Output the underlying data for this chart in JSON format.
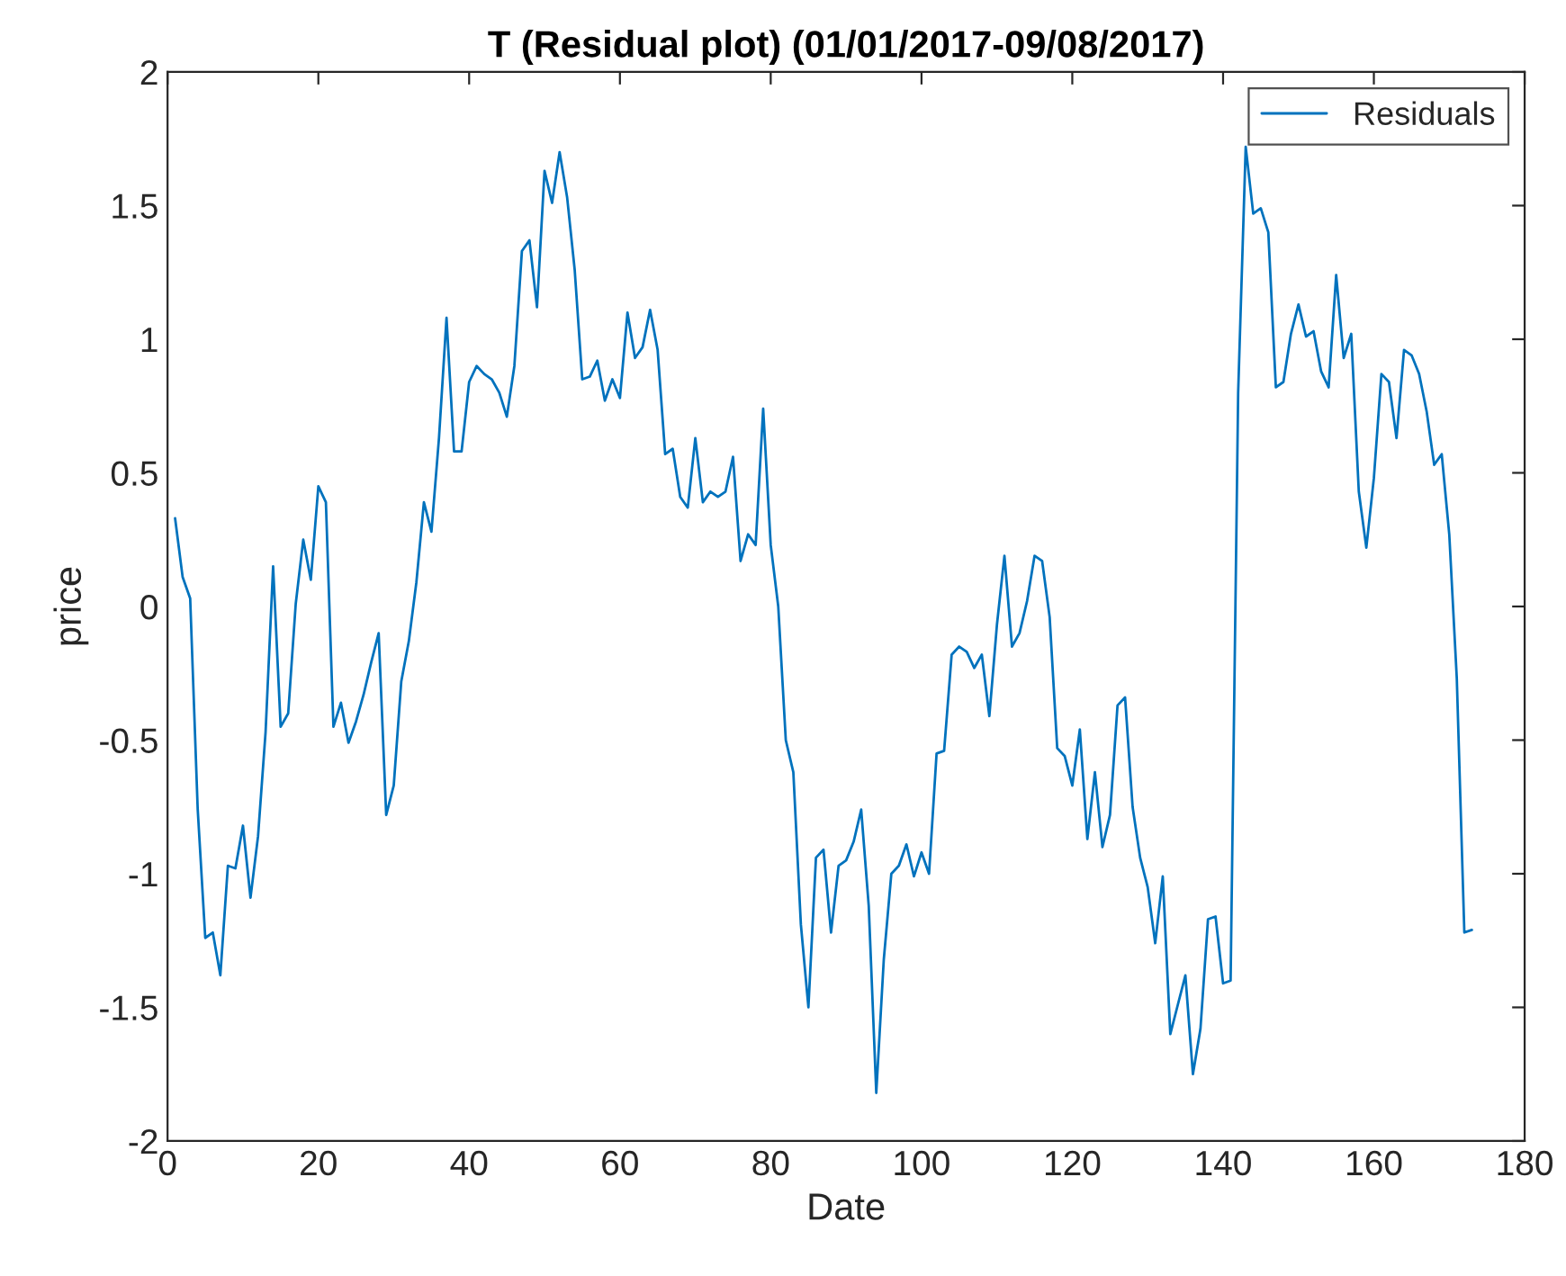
{
  "chart_data": {
    "type": "line",
    "title": "T (Residual plot) (01/01/2017-09/08/2017)",
    "xlabel": "Date",
    "ylabel": "price",
    "xlim": [
      0,
      180
    ],
    "xticks": [
      0,
      20,
      40,
      60,
      80,
      100,
      120,
      140,
      160,
      180
    ],
    "ylim": [
      -2,
      2
    ],
    "yticks": [
      -2,
      -1.5,
      -1,
      -0.5,
      0,
      0.5,
      1,
      1.5,
      2
    ],
    "grid": false,
    "legend": "top right",
    "x": [
      1,
      2,
      3,
      4,
      5,
      6,
      7,
      8,
      9,
      10,
      11,
      12,
      13,
      14,
      15,
      16,
      17,
      18,
      19,
      20,
      21,
      22,
      23,
      24,
      25,
      26,
      27,
      28,
      29,
      30,
      31,
      32,
      33,
      34,
      35,
      36,
      37,
      38,
      39,
      40,
      41,
      42,
      43,
      44,
      45,
      46,
      47,
      48,
      49,
      50,
      51,
      52,
      53,
      54,
      55,
      56,
      57,
      58,
      59,
      60,
      61,
      62,
      63,
      64,
      65,
      66,
      67,
      68,
      69,
      70,
      71,
      72,
      73,
      74,
      75,
      76,
      77,
      78,
      79,
      80,
      81,
      82,
      83,
      84,
      85,
      86,
      87,
      88,
      89,
      90,
      91,
      92,
      93,
      94,
      95,
      96,
      97,
      98,
      99,
      100,
      101,
      102,
      103,
      104,
      105,
      106,
      107,
      108,
      109,
      110,
      111,
      112,
      113,
      114,
      115,
      116,
      117,
      118,
      119,
      120,
      121,
      122,
      123,
      124,
      125,
      126,
      127,
      128,
      129,
      130,
      131,
      132,
      133,
      134,
      135,
      136,
      137,
      138,
      139,
      140,
      141,
      142,
      143,
      144,
      145,
      146,
      147,
      148,
      149,
      150,
      151,
      152,
      153,
      154,
      155,
      156,
      157,
      158,
      159,
      160,
      161,
      162,
      163,
      164,
      165,
      166,
      167,
      168,
      169,
      170,
      171,
      172,
      173
    ],
    "series": [
      {
        "name": "Residuals",
        "color": "#0072bd",
        "values": [
          0.33,
          0.11,
          0.03,
          -0.76,
          -1.24,
          -1.22,
          -1.38,
          -0.97,
          -0.98,
          -0.82,
          -1.09,
          -0.86,
          -0.47,
          0.15,
          -0.45,
          -0.4,
          0.01,
          0.25,
          0.1,
          0.45,
          0.39,
          -0.45,
          -0.36,
          -0.51,
          -0.43,
          -0.33,
          -0.21,
          -0.1,
          -0.78,
          -0.67,
          -0.28,
          -0.13,
          0.09,
          0.39,
          0.28,
          0.63,
          1.08,
          0.58,
          0.58,
          0.84,
          0.9,
          0.87,
          0.85,
          0.8,
          0.71,
          0.9,
          1.33,
          1.37,
          1.12,
          1.63,
          1.51,
          1.7,
          1.53,
          1.26,
          0.85,
          0.86,
          0.92,
          0.77,
          0.85,
          0.78,
          1.1,
          0.93,
          0.97,
          1.11,
          0.96,
          0.57,
          0.59,
          0.41,
          0.37,
          0.63,
          0.39,
          0.43,
          0.41,
          0.43,
          0.56,
          0.17,
          0.27,
          0.23,
          0.74,
          0.23,
          0.0,
          -0.5,
          -0.62,
          -1.19,
          -1.5,
          -0.94,
          -0.91,
          -1.22,
          -0.97,
          -0.95,
          -0.88,
          -0.76,
          -1.12,
          -1.82,
          -1.32,
          -1.0,
          -0.97,
          -0.89,
          -1.01,
          -0.92,
          -1.0,
          -0.55,
          -0.54,
          -0.18,
          -0.15,
          -0.17,
          -0.23,
          -0.18,
          -0.41,
          -0.07,
          0.19,
          -0.15,
          -0.1,
          0.02,
          0.19,
          0.17,
          -0.04,
          -0.53,
          -0.56,
          -0.67,
          -0.46,
          -0.87,
          -0.62,
          -0.9,
          -0.78,
          -0.37,
          -0.34,
          -0.75,
          -0.94,
          -1.05,
          -1.26,
          -1.01,
          -1.6,
          -1.49,
          -1.38,
          -1.75,
          -1.58,
          -1.17,
          -1.16,
          -1.41,
          -1.4,
          0.8,
          1.72,
          1.47,
          1.49,
          1.4,
          0.82,
          0.84,
          1.02,
          1.13,
          1.01,
          1.03,
          0.88,
          0.82,
          1.24,
          0.93,
          1.02,
          0.43,
          0.22,
          0.48,
          0.87,
          0.84,
          0.63,
          0.96,
          0.94,
          0.87,
          0.73,
          0.53,
          0.57,
          0.27,
          -0.27,
          -1.22,
          -1.21
        ]
      }
    ]
  }
}
